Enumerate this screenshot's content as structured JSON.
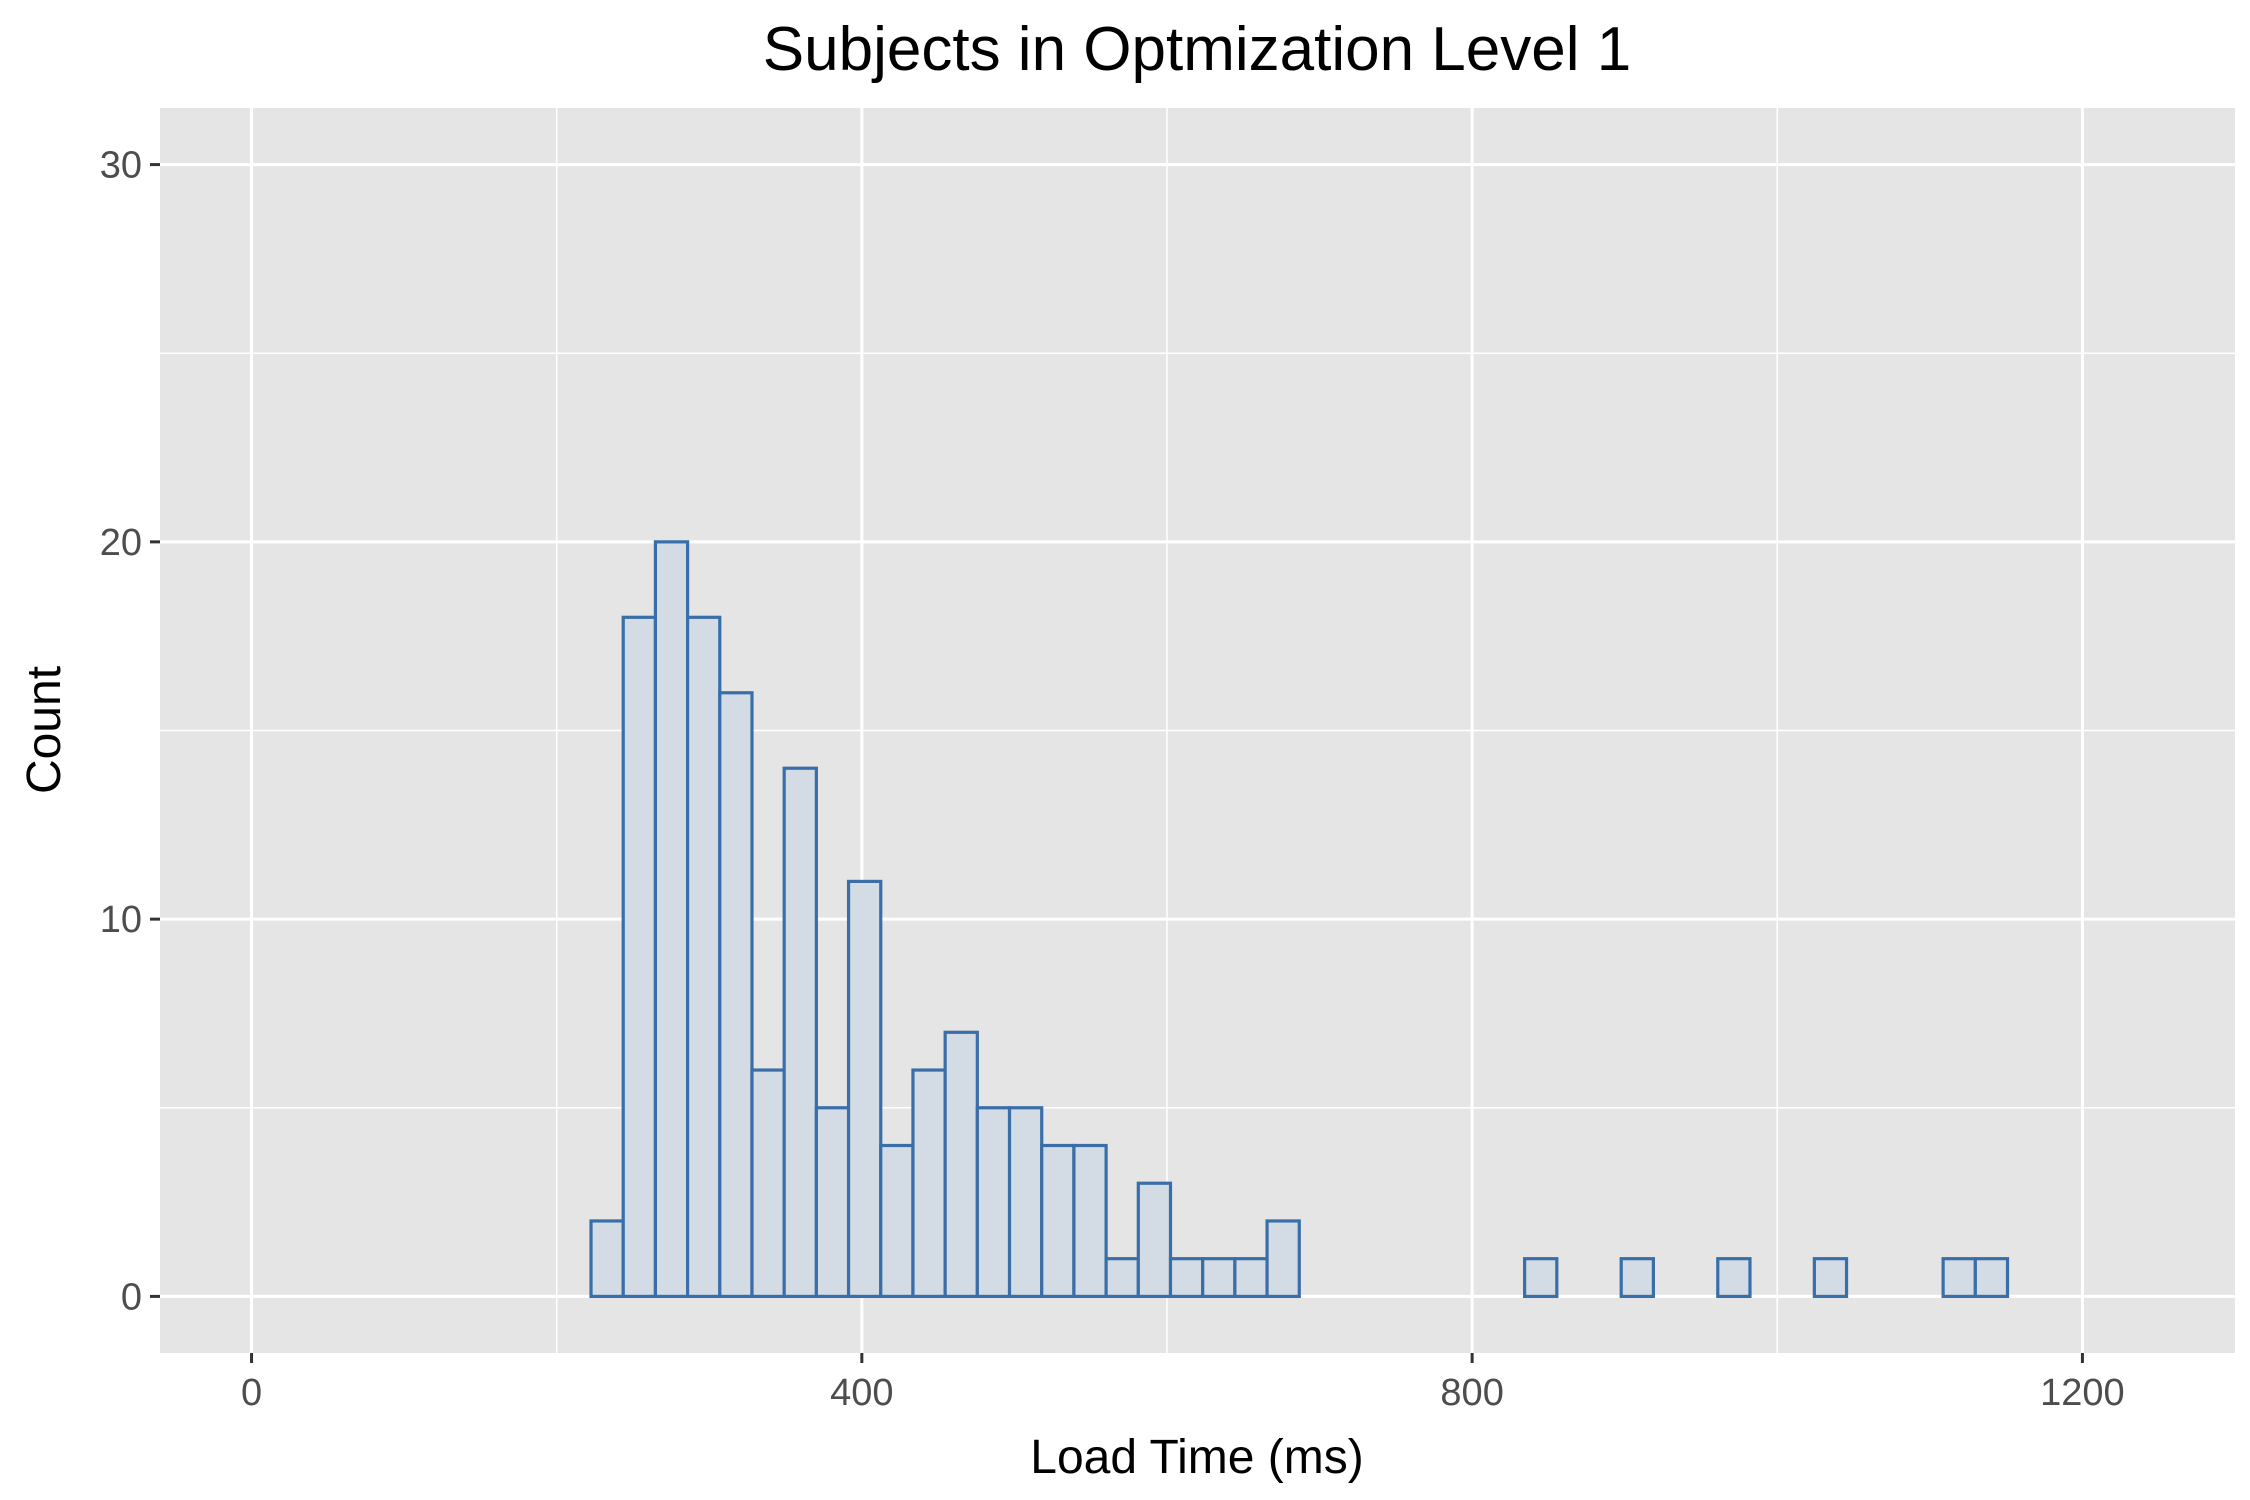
{
  "chart_data": {
    "type": "bar",
    "title": "Subjects in Optmization Level 1",
    "xlabel": "Load Time (ms)",
    "ylabel": "Count",
    "xlim": [
      -60,
      1300
    ],
    "ylim": [
      -1.5,
      31.5
    ],
    "x_ticks": [
      0,
      400,
      800,
      1200
    ],
    "y_ticks": [
      0,
      10,
      20,
      30
    ],
    "grid": true,
    "background": "#e5e5e5",
    "grid_color": "#ffffff",
    "bar_fill": "#d3dce4",
    "bar_stroke": "#3a6ea8",
    "bin_width": 21.1,
    "bin_start": 11.5,
    "series": [
      {
        "values": [
          0,
          0,
          0,
          0,
          0,
          0,
          0,
          0,
          0,
          0,
          2,
          18,
          20,
          18,
          16,
          6,
          14,
          5,
          11,
          4,
          6,
          7,
          5,
          5,
          4,
          4,
          1,
          3,
          1,
          1,
          1,
          2,
          0,
          0,
          0,
          0,
          0,
          0,
          0,
          1,
          0,
          0,
          1,
          0,
          0,
          1,
          0,
          0,
          1,
          0,
          0,
          0,
          1,
          1,
          0,
          0,
          0,
          0,
          0,
          0,
          0
        ]
      }
    ]
  }
}
